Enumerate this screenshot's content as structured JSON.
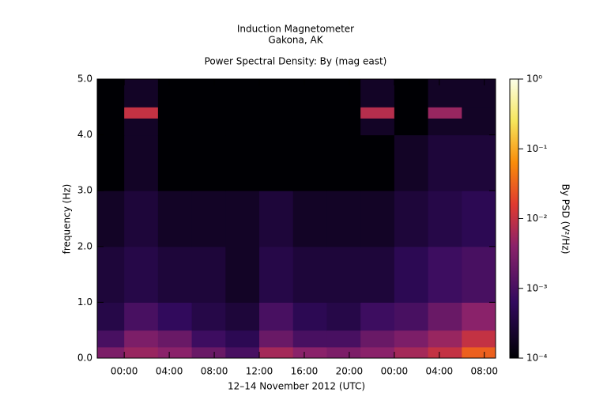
{
  "chart_data": {
    "type": "heatmap",
    "title": "Induction Magnetometer",
    "subtitle": "Gakona, AK",
    "plot_title": "Power Spectral Density: By (mag east)",
    "y_label": "frequency (Hz)",
    "x_label": "12–14 November 2012 (UTC)",
    "colorbar_label": "By PSD (V²/Hz)",
    "x_edges": [
      21.6,
      24,
      27,
      30,
      33,
      36,
      39,
      42,
      45,
      48,
      51,
      54,
      57
    ],
    "y_edges": [
      0,
      0.2,
      0.5,
      1,
      2,
      3,
      4,
      4.3,
      4.5,
      5
    ],
    "z": [
      [
        0.003,
        0.005,
        0.004,
        0.002,
        0.001,
        0.006,
        0.004,
        0.003,
        0.004,
        0.006,
        0.01,
        0.03
      ],
      [
        0.001,
        0.003,
        0.002,
        0.0008,
        0.0005,
        0.002,
        0.001,
        0.001,
        0.002,
        0.003,
        0.005,
        0.01
      ],
      [
        0.0004,
        0.001,
        0.0006,
        0.0004,
        0.0003,
        0.001,
        0.0005,
        0.0004,
        0.0008,
        0.001,
        0.002,
        0.004
      ],
      [
        0.0003,
        0.0004,
        0.0003,
        0.0003,
        0.0002,
        0.0004,
        0.0003,
        0.0003,
        0.0003,
        0.0005,
        0.0008,
        0.001
      ],
      [
        0.0002,
        0.0003,
        0.0002,
        0.0002,
        0.0002,
        0.0003,
        0.0002,
        0.0002,
        0.0002,
        0.0003,
        0.0004,
        0.0005
      ],
      [
        0.0001,
        0.0002,
        0.0001,
        0.0001,
        0.0001,
        0.0001,
        0.0001,
        0.0001,
        0.0001,
        0.0002,
        0.0003,
        0.0003
      ],
      [
        0.0001,
        0.0002,
        0.0001,
        0.0001,
        0.0001,
        0.0001,
        0.0001,
        0.0001,
        0.0002,
        0.0001,
        0.0002,
        0.0002
      ],
      [
        0.0001,
        0.01,
        0.0001,
        0.0001,
        0.0001,
        0.0001,
        0.0001,
        0.0001,
        0.008,
        0.0001,
        0.005,
        0.0002
      ],
      [
        0.0001,
        0.0002,
        0.0001,
        0.0001,
        0.0001,
        0.0001,
        0.0001,
        0.0001,
        0.0002,
        0.0001,
        0.0002,
        0.0002
      ]
    ],
    "xlim": [
      21.6,
      57
    ],
    "xticks": [
      {
        "value": 24,
        "label": "00:00"
      },
      {
        "value": 28,
        "label": "04:00"
      },
      {
        "value": 32,
        "label": "08:00"
      },
      {
        "value": 36,
        "label": "12:00"
      },
      {
        "value": 40,
        "label": "16:00"
      },
      {
        "value": 44,
        "label": "20:00"
      },
      {
        "value": 48,
        "label": "00:00"
      },
      {
        "value": 52,
        "label": "04:00"
      },
      {
        "value": 56,
        "label": "08:00"
      }
    ],
    "ylim": [
      0,
      5
    ],
    "yticks": [
      {
        "value": 0,
        "label": "0.0"
      },
      {
        "value": 1,
        "label": "1.0"
      },
      {
        "value": 2,
        "label": "2.0"
      },
      {
        "value": 3,
        "label": "3.0"
      },
      {
        "value": 4,
        "label": "4.0"
      },
      {
        "value": 5,
        "label": "5.0"
      }
    ],
    "clim": [
      0.0001,
      1
    ],
    "color_scale": "log",
    "cticks": [
      {
        "value": 0.0001,
        "label": "10⁻⁴"
      },
      {
        "value": 0.001,
        "label": "10⁻³"
      },
      {
        "value": 0.01,
        "label": "10⁻²"
      },
      {
        "value": 0.1,
        "label": "10⁻¹"
      },
      {
        "value": 1,
        "label": "10⁰"
      }
    ]
  }
}
